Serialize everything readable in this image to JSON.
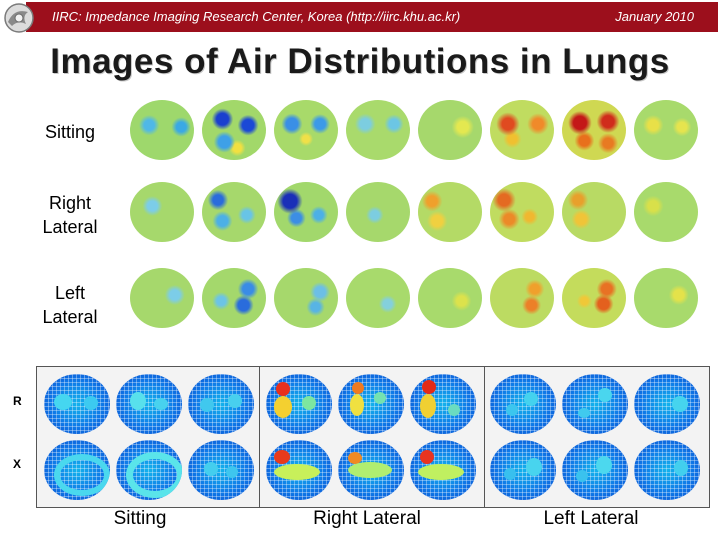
{
  "header": {
    "left_text": "IIRC: Impedance Imaging Research Center, Korea (http://iirc.khu.ac.kr)",
    "right_text": "January 2010",
    "bar_color": "#9c0f1c",
    "logo_icon": "iirc-logo"
  },
  "title": "Images of Air Distributions in Lungs",
  "rows": [
    {
      "label_line1": "Sitting",
      "label_line2": ""
    },
    {
      "label_line1": "Right",
      "label_line2": "Lateral"
    },
    {
      "label_line1": "Left",
      "label_line2": "Lateral"
    }
  ],
  "side_labels": {
    "r": "R",
    "x": "X"
  },
  "bottom_labels": [
    "Sitting",
    "Right Lateral",
    "Left Lateral"
  ]
}
